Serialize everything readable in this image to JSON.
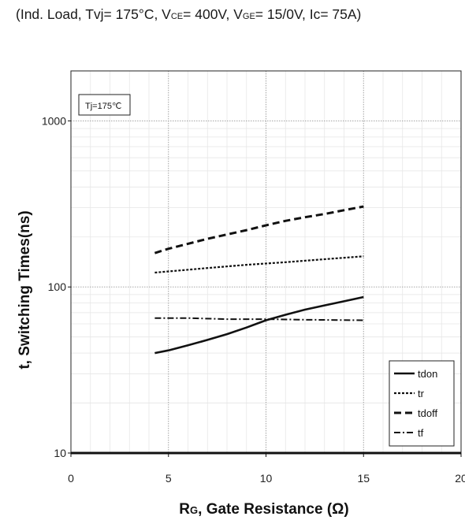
{
  "caption": {
    "part1": "(Ind. Load, Tvj= 175°C, V",
    "vce_sub": "CE",
    "part2": "= 400V, V",
    "vge_sub": "GE",
    "part3": "= 15/0V, Ic= 75A)"
  },
  "chart_data": {
    "type": "line",
    "title": "",
    "xlabel_main": "R",
    "xlabel_sub": "G",
    "xlabel_rest": ", Gate Resistance (Ω)",
    "ylabel": "t, Switching Times(ns)",
    "xlim": [
      0,
      20
    ],
    "ylim": [
      10,
      2000
    ],
    "yscale": "log",
    "xticks": [
      "0",
      "5",
      "10",
      "15",
      "20"
    ],
    "yticks": [
      "10",
      "100",
      "1000"
    ],
    "grid": true,
    "annotation": "Tj=175℃",
    "legend_position": "bottom-right",
    "series": [
      {
        "name": "tdon",
        "style": "solid",
        "x": [
          4.3,
          5,
          6,
          7,
          8,
          9,
          10,
          11,
          12,
          13,
          14,
          15
        ],
        "y": [
          40,
          41.5,
          44.5,
          48,
          52,
          57,
          63,
          68,
          73,
          77.5,
          82,
          87
        ]
      },
      {
        "name": "tr",
        "style": "dotted",
        "x": [
          4.3,
          5,
          7,
          9,
          11,
          13,
          15
        ],
        "y": [
          122,
          124,
          130,
          136,
          141,
          147,
          153
        ]
      },
      {
        "name": "tdoff",
        "style": "dashed",
        "x": [
          4.3,
          5,
          6,
          7,
          8,
          9,
          10,
          11,
          12,
          13,
          14,
          15
        ],
        "y": [
          160,
          170,
          182,
          195,
          207,
          220,
          235,
          250,
          263,
          275,
          290,
          305
        ]
      },
      {
        "name": "tf",
        "style": "dashdot",
        "x": [
          4.3,
          6,
          8,
          10,
          12,
          15
        ],
        "y": [
          65,
          65,
          64,
          64,
          63.5,
          63
        ]
      }
    ]
  }
}
